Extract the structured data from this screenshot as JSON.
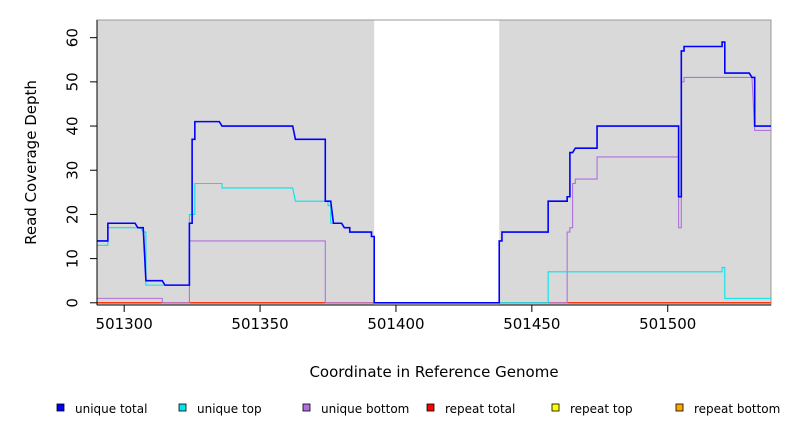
{
  "chart_data": {
    "type": "line",
    "title": "",
    "xlabel": "Coordinate in Reference Genome",
    "ylabel": "Read Coverage Depth",
    "xlim": [
      501290,
      501538
    ],
    "ylim": [
      -0.5,
      64
    ],
    "xticks": [
      501300,
      501350,
      501400,
      501450,
      501500
    ],
    "yticks": [
      0,
      10,
      20,
      30,
      40,
      50,
      60
    ],
    "shaded_regions": [
      {
        "from": 501290,
        "to": 501392
      },
      {
        "from": 501438,
        "to": 501538
      }
    ],
    "shade_color": "#d9d9d9",
    "legend_position": "bottom",
    "series": [
      {
        "name": "unique total",
        "color": "#0000ff",
        "points": [
          [
            501290,
            14
          ],
          [
            501294,
            14
          ],
          [
            501294,
            18
          ],
          [
            501304,
            18
          ],
          [
            501305,
            17
          ],
          [
            501307,
            17
          ],
          [
            501308,
            5
          ],
          [
            501314,
            5
          ],
          [
            501315,
            4
          ],
          [
            501324,
            4
          ],
          [
            501324,
            18
          ],
          [
            501325,
            18
          ],
          [
            501325,
            37
          ],
          [
            501326,
            37
          ],
          [
            501326,
            41
          ],
          [
            501335,
            41
          ],
          [
            501336,
            40
          ],
          [
            501362,
            40
          ],
          [
            501363,
            37
          ],
          [
            501374,
            37
          ],
          [
            501374,
            23
          ],
          [
            501376,
            23
          ],
          [
            501377,
            18
          ],
          [
            501380,
            18
          ],
          [
            501381,
            17
          ],
          [
            501383,
            17
          ],
          [
            501383,
            16
          ],
          [
            501391,
            16
          ],
          [
            501391,
            15
          ],
          [
            501392,
            15
          ],
          [
            501392,
            0
          ],
          [
            501438,
            0
          ],
          [
            501438,
            14
          ],
          [
            501439,
            14
          ],
          [
            501439,
            16
          ],
          [
            501456,
            16
          ],
          [
            501456,
            23
          ],
          [
            501463,
            23
          ],
          [
            501463,
            24
          ],
          [
            501464,
            24
          ],
          [
            501464,
            34
          ],
          [
            501465,
            34
          ],
          [
            501466,
            35
          ],
          [
            501474,
            35
          ],
          [
            501474,
            40
          ],
          [
            501504,
            40
          ],
          [
            501504,
            24
          ],
          [
            501505,
            24
          ],
          [
            501505,
            57
          ],
          [
            501506,
            57
          ],
          [
            501506,
            58
          ],
          [
            501520,
            58
          ],
          [
            501520,
            59
          ],
          [
            501521,
            59
          ],
          [
            501521,
            52
          ],
          [
            501530,
            52
          ],
          [
            501531,
            51
          ],
          [
            501532,
            51
          ],
          [
            501532,
            40
          ],
          [
            501538,
            40
          ]
        ]
      },
      {
        "name": "unique top",
        "color": "#00e5ee",
        "points": [
          [
            501290,
            13
          ],
          [
            501294,
            13
          ],
          [
            501294,
            17
          ],
          [
            501306,
            17
          ],
          [
            501307,
            16
          ],
          [
            501308,
            16
          ],
          [
            501308,
            4
          ],
          [
            501324,
            4
          ],
          [
            501324,
            20
          ],
          [
            501326,
            20
          ],
          [
            501326,
            27
          ],
          [
            501336,
            27
          ],
          [
            501336,
            26
          ],
          [
            501362,
            26
          ],
          [
            501363,
            23
          ],
          [
            501375,
            23
          ],
          [
            501375,
            22
          ],
          [
            501376,
            22
          ],
          [
            501376,
            18
          ],
          [
            501380,
            18
          ],
          [
            501381,
            17
          ],
          [
            501383,
            17
          ],
          [
            501383,
            16
          ],
          [
            501391,
            16
          ],
          [
            501391,
            15
          ],
          [
            501392,
            15
          ],
          [
            501392,
            0
          ],
          [
            501456,
            0
          ],
          [
            501456,
            7
          ],
          [
            501520,
            7
          ],
          [
            501520,
            8
          ],
          [
            501521,
            8
          ],
          [
            501521,
            1
          ],
          [
            501538,
            1
          ]
        ]
      },
      {
        "name": "unique bottom",
        "color": "#b070e0",
        "points": [
          [
            501290,
            1
          ],
          [
            501308,
            1
          ],
          [
            501308,
            1
          ],
          [
            501314,
            1
          ],
          [
            501314,
            0
          ],
          [
            501324,
            0
          ],
          [
            501324,
            14
          ],
          [
            501374,
            14
          ],
          [
            501374,
            0
          ],
          [
            501463,
            0
          ],
          [
            501463,
            16
          ],
          [
            501464,
            16
          ],
          [
            501464,
            17
          ],
          [
            501465,
            17
          ],
          [
            501465,
            27
          ],
          [
            501466,
            27
          ],
          [
            501466,
            28
          ],
          [
            501474,
            28
          ],
          [
            501474,
            33
          ],
          [
            501504,
            33
          ],
          [
            501504,
            17
          ],
          [
            501505,
            17
          ],
          [
            501505,
            50
          ],
          [
            501506,
            50
          ],
          [
            501506,
            51
          ],
          [
            501531,
            51
          ],
          [
            501532,
            39
          ],
          [
            501538,
            39
          ]
        ]
      },
      {
        "name": "repeat total",
        "color": "#ff0000",
        "points": [
          [
            501290,
            0
          ],
          [
            501538,
            0
          ]
        ]
      },
      {
        "name": "repeat top",
        "color": "#ffff00",
        "points": [
          [
            501290,
            0
          ],
          [
            501538,
            0
          ]
        ]
      },
      {
        "name": "repeat bottom",
        "color": "#ffa500",
        "points": [
          [
            501290,
            0
          ],
          [
            501538,
            0
          ]
        ]
      }
    ]
  }
}
